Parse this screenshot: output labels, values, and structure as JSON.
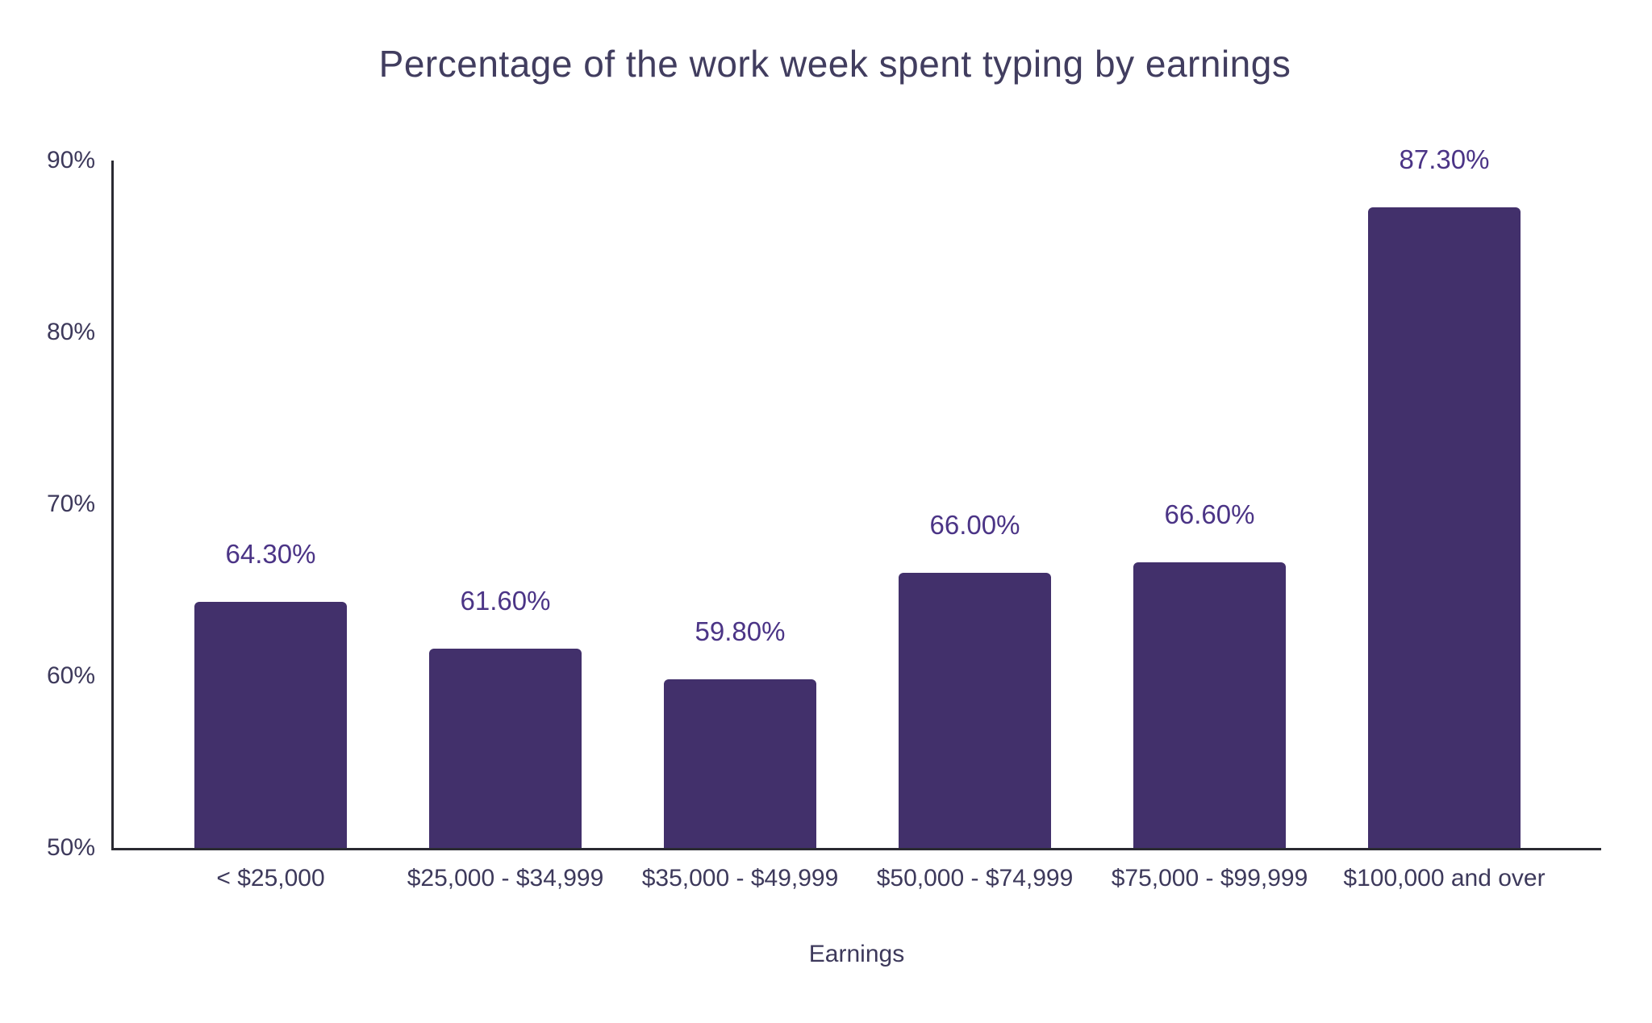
{
  "page": {
    "background": "#ffffff"
  },
  "colors": {
    "bar_fill": "#42306B",
    "data_label": "#4B3486",
    "axis_text": "#3D395B",
    "title_text": "#413D5F",
    "axis_line": "#2A2A32"
  },
  "chart_data": {
    "type": "bar",
    "title": "Percentage of the work week spent typing by earnings",
    "categories": [
      "< $25,000",
      "$25,000 - $34,999",
      "$35,000 - $49,999",
      "$50,000 - $74,999",
      "$75,000 - $99,999",
      "$100,000 and over"
    ],
    "values": [
      64.3,
      61.6,
      59.8,
      66.0,
      66.6,
      87.3
    ],
    "data_labels": [
      "64.30%",
      "61.60%",
      "59.80%",
      "66.00%",
      "66.60%",
      "87.30%"
    ],
    "xlabel": "Earnings",
    "ylabel": "",
    "ylim": [
      50,
      90
    ],
    "ytick_values": [
      50,
      60,
      70,
      80,
      90
    ],
    "ytick_labels": [
      "50%",
      "60%",
      "70%",
      "80%",
      "90%"
    ],
    "grid": false,
    "legend": "none"
  }
}
